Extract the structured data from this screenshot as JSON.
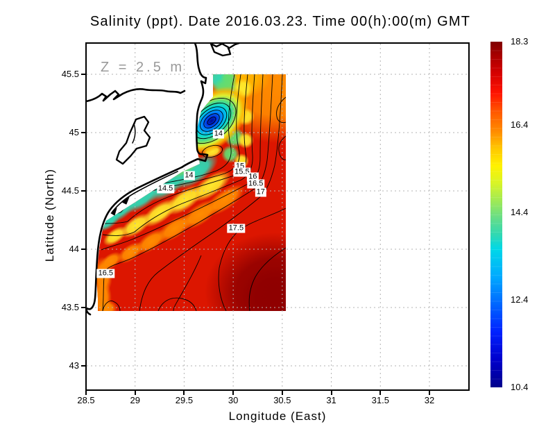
{
  "chart_data": {
    "type": "heatmap",
    "title": "Salinity (ppt). Date 2016.03.23. Time 00(h):00(m) GMT",
    "variable": "Salinity",
    "units": "ppt",
    "date": "2016.03.23",
    "time": "00(h):00(m) GMT",
    "depth_annotation": "Z = 2.5 m",
    "xlabel": "Longitude (East)",
    "ylabel": "Latitude (North)",
    "x_ticks": [
      28.5,
      29,
      29.5,
      30,
      30.5,
      31,
      31.5,
      32
    ],
    "y_ticks": [
      45.5,
      45,
      44.5,
      44,
      43.5,
      43
    ],
    "xlim": [
      28.5,
      32.4
    ],
    "ylim": [
      42.8,
      45.8
    ],
    "grid": "dashed-gray",
    "colorbar": {
      "min": 10.4,
      "max": 18.3,
      "ticks": [
        18.3,
        16.4,
        14.4,
        12.4,
        10.4
      ],
      "colormap": "jet",
      "position": "right"
    },
    "data_extent": {
      "lon": [
        28.6,
        30.53
      ],
      "lat": [
        43.48,
        45.55
      ]
    },
    "contour_interval": 0.5,
    "contour_labels": [
      {
        "value": "14",
        "lon": 29.85,
        "lat": 44.99
      },
      {
        "value": "14",
        "lon": 29.55,
        "lat": 44.63
      },
      {
        "value": "14.5",
        "lon": 29.31,
        "lat": 44.52
      },
      {
        "value": "15",
        "lon": 30.07,
        "lat": 44.71
      },
      {
        "value": "15.5",
        "lon": 30.09,
        "lat": 44.66
      },
      {
        "value": "16",
        "lon": 30.2,
        "lat": 44.62
      },
      {
        "value": "16.5",
        "lon": 30.23,
        "lat": 44.56
      },
      {
        "value": "17",
        "lon": 30.28,
        "lat": 44.49
      },
      {
        "value": "17.5",
        "lon": 30.03,
        "lat": 44.18
      },
      {
        "value": "16.5",
        "lon": 28.7,
        "lat": 43.79
      }
    ],
    "features": {
      "low_salinity_plume": {
        "lon": 29.78,
        "lat": 45.1,
        "approx_min": 10.4
      },
      "high_salinity_region": {
        "lon": 30.4,
        "lat": 43.6,
        "approx_max": 18.3
      }
    },
    "annotation_color": "#999999"
  }
}
